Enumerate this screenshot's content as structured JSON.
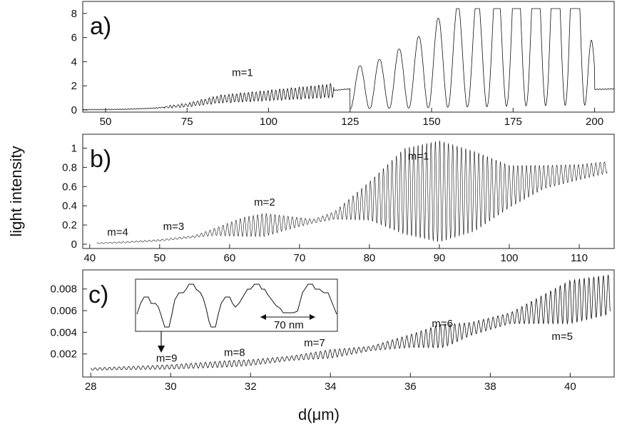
{
  "figure": {
    "ylabel": "light  intensity",
    "xlabel": "d(μm)"
  },
  "chart_data": [
    {
      "type": "line",
      "panel": "a)",
      "x_range": [
        43,
        206
      ],
      "y_range": [
        0,
        8.4
      ],
      "x_ticks": [
        50,
        75,
        100,
        125,
        150,
        175,
        200
      ],
      "y_ticks": [
        0,
        2,
        4,
        6,
        8
      ],
      "annotations": [
        {
          "text": "m=1",
          "x": 92,
          "y": 2.8
        }
      ],
      "envelope": [
        [
          43,
          0.02
        ],
        [
          55,
          0.05
        ],
        [
          65,
          0.15
        ],
        [
          75,
          0.4
        ],
        [
          85,
          0.9
        ],
        [
          95,
          1.1
        ],
        [
          105,
          1.3
        ],
        [
          115,
          1.5
        ],
        [
          125,
          1.75
        ],
        [
          135,
          2.2
        ],
        [
          145,
          3.0
        ],
        [
          155,
          4.3
        ],
        [
          165,
          5.0
        ],
        [
          175,
          6.6
        ],
        [
          185,
          7.4
        ],
        [
          190,
          7.9
        ],
        [
          197,
          8.3
        ],
        [
          200,
          1.7
        ],
        [
          206,
          1.75
        ]
      ],
      "oscillations": [
        {
          "period": 1.2,
          "from": 68,
          "to": 120,
          "rel_amp": 0.35
        },
        {
          "period": 6.0,
          "from": 125,
          "to": 200,
          "rel_amp": 0.95
        }
      ]
    },
    {
      "type": "line",
      "panel": "b)",
      "x_range": [
        39,
        115
      ],
      "y_range": [
        0,
        1.1
      ],
      "x_ticks": [
        40,
        50,
        60,
        70,
        80,
        90,
        100,
        110
      ],
      "y_ticks": [
        0,
        0.2,
        0.4,
        0.6,
        0.8,
        1
      ],
      "annotations": [
        {
          "text": "m=4",
          "x": 44,
          "y": 0.09
        },
        {
          "text": "m=3",
          "x": 52,
          "y": 0.15
        },
        {
          "text": "m=2",
          "x": 65,
          "y": 0.4
        },
        {
          "text": "m=1",
          "x": 87,
          "y": 0.88
        }
      ],
      "envelope": [
        [
          41,
          0.01
        ],
        [
          45,
          0.02
        ],
        [
          50,
          0.04
        ],
        [
          55,
          0.08
        ],
        [
          58,
          0.13
        ],
        [
          62,
          0.18
        ],
        [
          65,
          0.2
        ],
        [
          68,
          0.22
        ],
        [
          72,
          0.24
        ],
        [
          75,
          0.3
        ],
        [
          80,
          0.45
        ],
        [
          85,
          0.55
        ],
        [
          90,
          0.55
        ],
        [
          95,
          0.55
        ],
        [
          100,
          0.6
        ],
        [
          105,
          0.7
        ],
        [
          110,
          0.75
        ],
        [
          114,
          0.8
        ]
      ],
      "amplitude": [
        [
          41,
          0.005
        ],
        [
          55,
          0.01
        ],
        [
          58,
          0.04
        ],
        [
          62,
          0.1
        ],
        [
          65,
          0.12
        ],
        [
          69,
          0.06
        ],
        [
          72,
          0.02
        ],
        [
          75,
          0.04
        ],
        [
          80,
          0.2
        ],
        [
          85,
          0.45
        ],
        [
          90,
          0.53
        ],
        [
          95,
          0.42
        ],
        [
          100,
          0.22
        ],
        [
          105,
          0.12
        ],
        [
          110,
          0.08
        ],
        [
          114,
          0.06
        ]
      ],
      "period": 0.62
    },
    {
      "type": "line",
      "panel": "c)",
      "x_range": [
        27.8,
        41.1
      ],
      "y_range": [
        0,
        0.0095
      ],
      "x_ticks": [
        28,
        30,
        32,
        34,
        36,
        38,
        40
      ],
      "y_ticks": [
        0.002,
        0.004,
        0.006,
        0.008
      ],
      "annotations": [
        {
          "text": "m=9",
          "x": 29.9,
          "y": 0.0013
        },
        {
          "text": "m=8",
          "x": 31.6,
          "y": 0.0018
        },
        {
          "text": "m=7",
          "x": 33.6,
          "y": 0.0027
        },
        {
          "text": "m=6",
          "x": 36.8,
          "y": 0.0045
        },
        {
          "text": "m=5",
          "x": 39.8,
          "y": 0.0033
        }
      ],
      "inset_label": "70 nm",
      "envelope": [
        [
          28,
          0.0006
        ],
        [
          30,
          0.0008
        ],
        [
          32,
          0.0012
        ],
        [
          34,
          0.002
        ],
        [
          35,
          0.0025
        ],
        [
          36,
          0.0032
        ],
        [
          37,
          0.0038
        ],
        [
          38,
          0.0048
        ],
        [
          39,
          0.0058
        ],
        [
          40,
          0.0068
        ],
        [
          41,
          0.0075
        ]
      ],
      "amplitude": [
        [
          28,
          0.0001
        ],
        [
          30,
          0.0002
        ],
        [
          31.5,
          0.0003
        ],
        [
          33,
          0.0002
        ],
        [
          34,
          0.0004
        ],
        [
          35,
          0.0002
        ],
        [
          36,
          0.0006
        ],
        [
          36.8,
          0.0011
        ],
        [
          37.5,
          0.0006
        ],
        [
          38.5,
          0.0005
        ],
        [
          39.5,
          0.0015
        ],
        [
          40,
          0.002
        ],
        [
          41,
          0.0018
        ]
      ],
      "period": 0.12
    }
  ]
}
